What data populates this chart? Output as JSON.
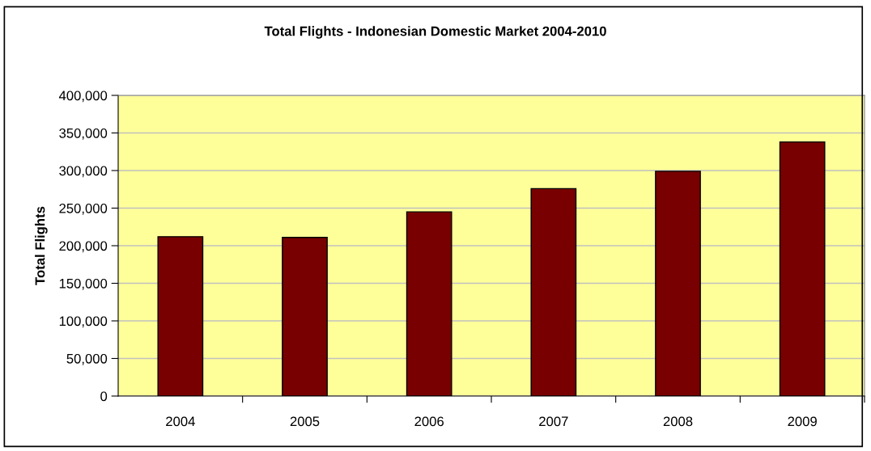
{
  "chart_data": {
    "type": "bar",
    "title": "Total Flights - Indonesian Domestic Market 2004-2010",
    "ylabel": "Total Flights",
    "categories": [
      "2004",
      "2005",
      "2006",
      "2007",
      "2008",
      "2009"
    ],
    "series": [
      {
        "color": "#780000",
        "values": [
          212000,
          211000,
          245000,
          276000,
          299000,
          338000
        ]
      }
    ],
    "ylim": [
      0,
      400000
    ],
    "yticks": [
      {
        "value": 0,
        "label": "0"
      },
      {
        "value": 50000,
        "label": "50,000"
      },
      {
        "value": 100000,
        "label": "100,000"
      },
      {
        "value": 150000,
        "label": "150,000"
      },
      {
        "value": 200000,
        "label": "200,000"
      },
      {
        "value": 250000,
        "label": "250,000"
      },
      {
        "value": 300000,
        "label": "300,000"
      },
      {
        "value": 350000,
        "label": "350,000"
      },
      {
        "value": 400000,
        "label": "400,000"
      }
    ],
    "grid": "y"
  }
}
